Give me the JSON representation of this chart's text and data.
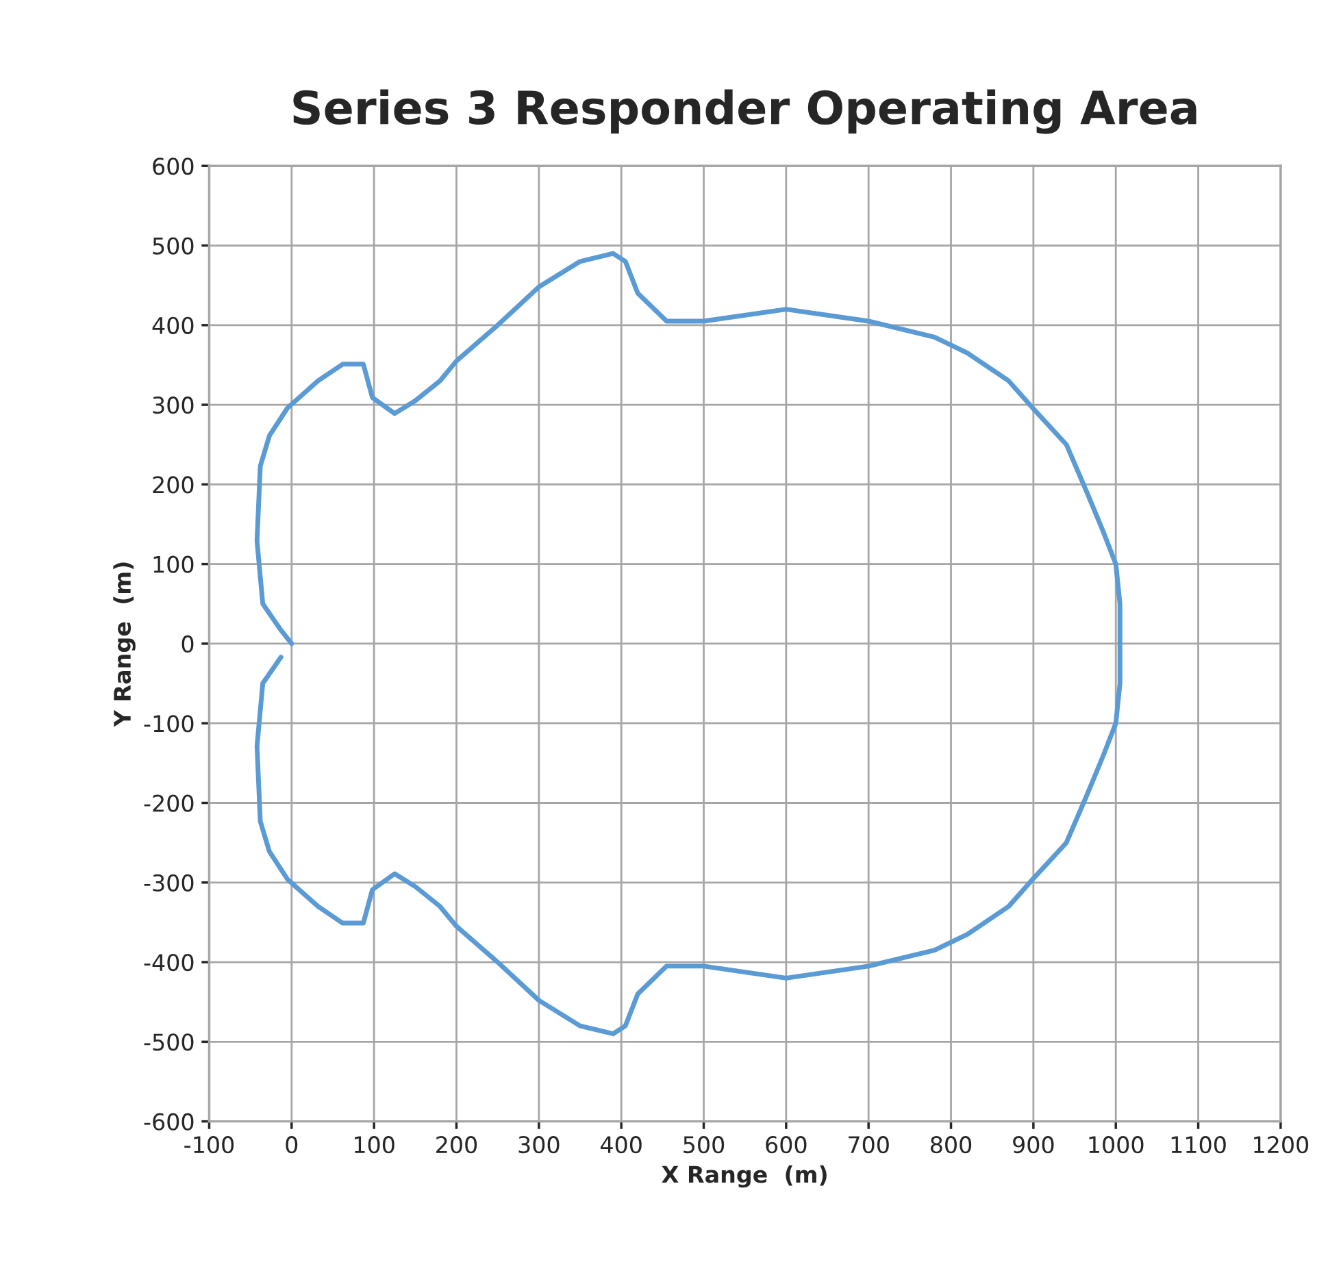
{
  "chart_data": {
    "type": "line",
    "title": "Series 3 Responder Operating Area",
    "xlabel": "X Range  (m)",
    "ylabel": "Y Range  (m)",
    "series": [
      {
        "color": "#5b9bd5",
        "x": [
          0,
          -13,
          -35,
          -42,
          -38,
          -27,
          -5,
          32,
          62,
          87,
          98,
          125,
          150,
          180,
          200,
          250,
          300,
          350,
          390,
          405,
          420,
          455,
          500,
          600,
          700,
          780,
          820,
          870,
          900,
          940,
          965,
          985,
          1000,
          1005,
          1005,
          1005,
          1000,
          985,
          965,
          940,
          900,
          870,
          820,
          780,
          700,
          600,
          500,
          455,
          420,
          405,
          390,
          350,
          300,
          250,
          200,
          180,
          150,
          125,
          98,
          87,
          62,
          32,
          -5,
          -27,
          -38,
          -42,
          -35,
          -13
        ],
        "values": [
          0,
          17,
          50,
          129,
          223,
          261,
          296,
          330,
          351,
          351,
          309,
          289,
          305,
          330,
          355,
          400,
          448,
          480,
          490,
          480,
          440,
          405,
          405,
          420,
          405,
          385,
          365,
          330,
          295,
          250,
          190,
          140,
          100,
          50,
          0,
          -50,
          -100,
          -140,
          -190,
          -250,
          -295,
          -330,
          -365,
          -385,
          -405,
          -420,
          -405,
          -405,
          -440,
          -480,
          -490,
          -480,
          -448,
          -400,
          -355,
          -330,
          -305,
          -289,
          -309,
          -351,
          -351,
          -330,
          -296,
          -261,
          -223,
          -129,
          -50,
          -17
        ]
      }
    ],
    "xlim": [
      -100,
      1200
    ],
    "xticks": [
      -100,
      0,
      100,
      200,
      300,
      400,
      500,
      600,
      700,
      800,
      900,
      1000,
      1100,
      1200
    ],
    "ylim": [
      -600,
      600
    ],
    "yticks": [
      -600,
      -500,
      -400,
      -300,
      -200,
      -100,
      0,
      100,
      200,
      300,
      400,
      500,
      600
    ],
    "grid": true,
    "legend": false,
    "marker": "none",
    "line_style": "solid"
  }
}
